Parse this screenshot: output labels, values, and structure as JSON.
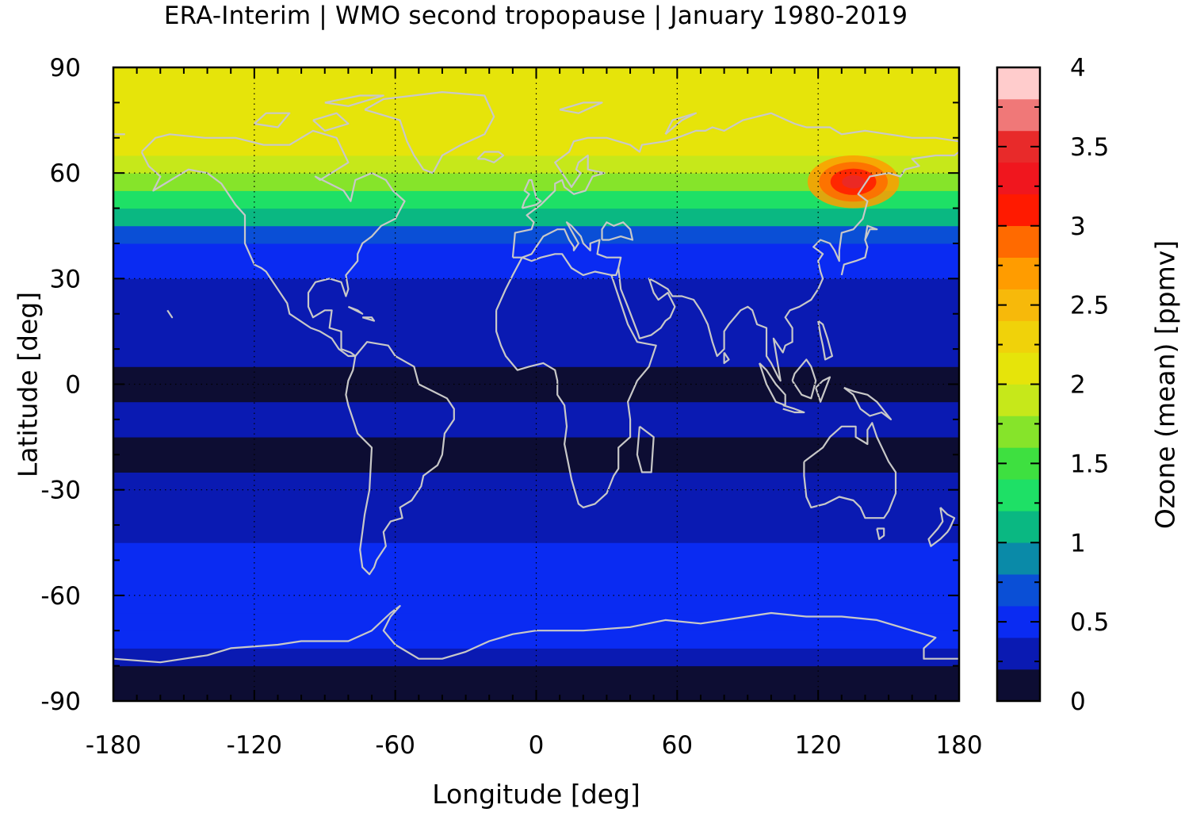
{
  "chart_data": {
    "type": "heatmap",
    "title": "ERA-Interim | WMO second tropopause | January 1980-2019",
    "xlabel": "Longitude [deg]",
    "ylabel": "Latitude [deg]",
    "colorbar_label": "Ozone (mean) [ppmv]",
    "xlim": [
      -180,
      180
    ],
    "ylim": [
      -90,
      90
    ],
    "xticks": [
      -180,
      -120,
      -60,
      0,
      60,
      120,
      180
    ],
    "xtick_labels": [
      "-180",
      "-120",
      "-60",
      "0",
      "60",
      "120",
      "180"
    ],
    "yticks": [
      -90,
      -60,
      -30,
      0,
      30,
      60,
      90
    ],
    "ytick_labels": [
      "-90",
      "-60",
      "-30",
      "0",
      "30",
      "60",
      "90"
    ],
    "grid": "dotted at 60 deg intervals",
    "colorbar": {
      "range": [
        0,
        4
      ],
      "ticks": [
        0,
        0.5,
        1,
        1.5,
        2,
        2.5,
        3,
        3.5,
        4
      ],
      "tick_labels": [
        "0",
        "0.5",
        "1",
        "1.5",
        "2",
        "2.5",
        "3",
        "3.5",
        "4"
      ],
      "levels": [
        {
          "from": 0.0,
          "to": 0.2,
          "color": "#0d0d33"
        },
        {
          "from": 0.2,
          "to": 0.4,
          "color": "#0a1ab2"
        },
        {
          "from": 0.4,
          "to": 0.6,
          "color": "#0a2bf2"
        },
        {
          "from": 0.6,
          "to": 0.8,
          "color": "#0a4fd6"
        },
        {
          "from": 0.8,
          "to": 1.0,
          "color": "#0a8aa8"
        },
        {
          "from": 1.0,
          "to": 1.2,
          "color": "#0ab882"
        },
        {
          "from": 1.2,
          "to": 1.4,
          "color": "#1ee066"
        },
        {
          "from": 1.4,
          "to": 1.6,
          "color": "#3ee040"
        },
        {
          "from": 1.6,
          "to": 1.8,
          "color": "#86e42a"
        },
        {
          "from": 1.8,
          "to": 2.0,
          "color": "#c6e81a"
        },
        {
          "from": 2.0,
          "to": 2.2,
          "color": "#e6e40a"
        },
        {
          "from": 2.2,
          "to": 2.4,
          "color": "#f0d20a"
        },
        {
          "from": 2.4,
          "to": 2.6,
          "color": "#f7b90a"
        },
        {
          "from": 2.6,
          "to": 2.8,
          "color": "#ff9c00"
        },
        {
          "from": 2.8,
          "to": 3.0,
          "color": "#ff6a00"
        },
        {
          "from": 3.0,
          "to": 3.2,
          "color": "#ff1a00"
        },
        {
          "from": 3.2,
          "to": 3.4,
          "color": "#f0161e"
        },
        {
          "from": 3.4,
          "to": 3.6,
          "color": "#e82a2a"
        },
        {
          "from": 3.6,
          "to": 3.8,
          "color": "#f07878"
        },
        {
          "from": 3.8,
          "to": 4.0,
          "color": "#ffcccc"
        }
      ]
    },
    "zonal_mean_ozone_by_latitude": {
      "latitudes": [
        -90,
        -80,
        -75,
        -70,
        -65,
        -55,
        -45,
        -40,
        -35,
        -25,
        -15,
        -5,
        5,
        15,
        25,
        30,
        35,
        40,
        45,
        50,
        55,
        60,
        65,
        70,
        75,
        80,
        90
      ],
      "values": [
        0.1,
        0.1,
        0.3,
        0.5,
        0.5,
        0.5,
        0.5,
        0.3,
        0.3,
        0.3,
        0.1,
        0.3,
        0.1,
        0.3,
        0.3,
        0.3,
        0.5,
        0.5,
        0.7,
        1.0,
        1.3,
        1.7,
        1.9,
        2.1,
        2.1,
        2.1,
        2.1
      ]
    },
    "regional_maximum": {
      "lon_range": [
        120,
        150
      ],
      "lat_range": [
        50,
        65
      ],
      "max_value": 3.5
    },
    "overlay": "coastlines (light grey)"
  }
}
